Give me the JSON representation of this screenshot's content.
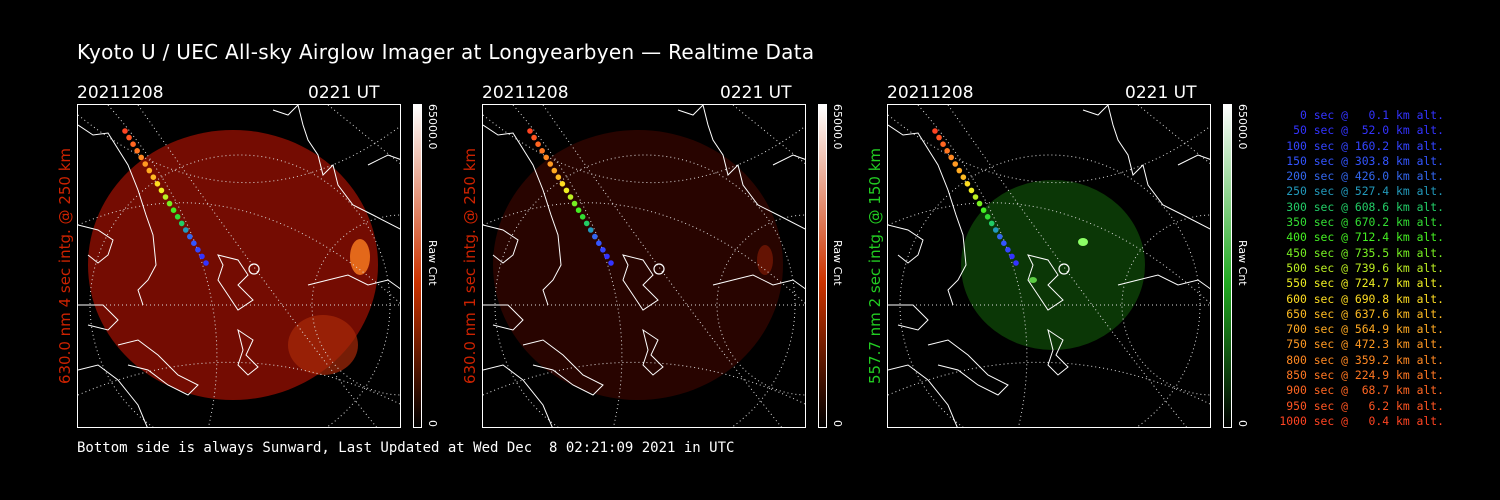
{
  "title": "Kyoto U / UEC All-sky Airglow Imager at Longyearbyen — Realtime Data",
  "panels": [
    {
      "date": "20211208",
      "time": "0221 UT",
      "ylabel": "630.0 nm 4 sec intg. @ 250 km",
      "color": "#cc2200",
      "cbar_max": "65000.0",
      "cbar_min": "0",
      "cbar_unit": "Raw Cnt",
      "cbar_top": "#ffffff",
      "cbar_mid": "#cc3300",
      "image_fill": "#7a0d02"
    },
    {
      "date": "20211208",
      "time": "0221 UT",
      "ylabel": "630.0 nm 1 sec intg. @ 250 km",
      "color": "#cc2200",
      "cbar_max": "65000.0",
      "cbar_min": "0",
      "cbar_unit": "Raw Cnt",
      "cbar_top": "#ffffff",
      "cbar_mid": "#cc3300",
      "image_fill": "#2a0400"
    },
    {
      "date": "20211208",
      "time": "0221 UT",
      "ylabel": "557.7 nm 2 sec intg. @ 150 km",
      "color": "#22cc22",
      "cbar_max": "65000.0",
      "cbar_min": "0",
      "cbar_unit": "Raw Cnt",
      "cbar_top": "#ffffff",
      "cbar_mid": "#22aa22",
      "image_fill": "#0c3a06"
    }
  ],
  "legend": [
    {
      "text": "0 sec @   0.1 km alt.",
      "color": "#3333ff"
    },
    {
      "text": "50 sec @  52.0 km alt.",
      "color": "#3333ff"
    },
    {
      "text": "100 sec @ 160.2 km alt.",
      "color": "#3344ff"
    },
    {
      "text": "150 sec @ 303.8 km alt.",
      "color": "#3355ff"
    },
    {
      "text": "200 sec @ 426.0 km alt.",
      "color": "#3366ee"
    },
    {
      "text": "250 sec @ 527.4 km alt.",
      "color": "#2299bb"
    },
    {
      "text": "300 sec @ 608.6 km alt.",
      "color": "#22cc66"
    },
    {
      "text": "350 sec @ 670.2 km alt.",
      "color": "#33dd33"
    },
    {
      "text": "400 sec @ 712.4 km alt.",
      "color": "#44ee22"
    },
    {
      "text": "450 sec @ 735.5 km alt.",
      "color": "#77ee22"
    },
    {
      "text": "500 sec @ 739.6 km alt.",
      "color": "#bbee22"
    },
    {
      "text": "550 sec @ 724.7 km alt.",
      "color": "#eeee22"
    },
    {
      "text": "600 sec @ 690.8 km alt.",
      "color": "#ffdd22"
    },
    {
      "text": "650 sec @ 637.6 km alt.",
      "color": "#ffbb22"
    },
    {
      "text": "700 sec @ 564.9 km alt.",
      "color": "#ffaa22"
    },
    {
      "text": "750 sec @ 472.3 km alt.",
      "color": "#ff9922"
    },
    {
      "text": "800 sec @ 359.2 km alt.",
      "color": "#ff8822"
    },
    {
      "text": "850 sec @ 224.9 km alt.",
      "color": "#ff7722"
    },
    {
      "text": "900 sec @  68.7 km alt.",
      "color": "#ff6622"
    },
    {
      "text": "950 sec @   6.2 km alt.",
      "color": "#ff5522"
    },
    {
      "text": "1000 sec @   0.4 km alt.",
      "color": "#ff4422"
    }
  ],
  "footer": "Bottom side is always Sunward, Last Updated at Wed Dec  8 02:21:09 2021 in UTC"
}
